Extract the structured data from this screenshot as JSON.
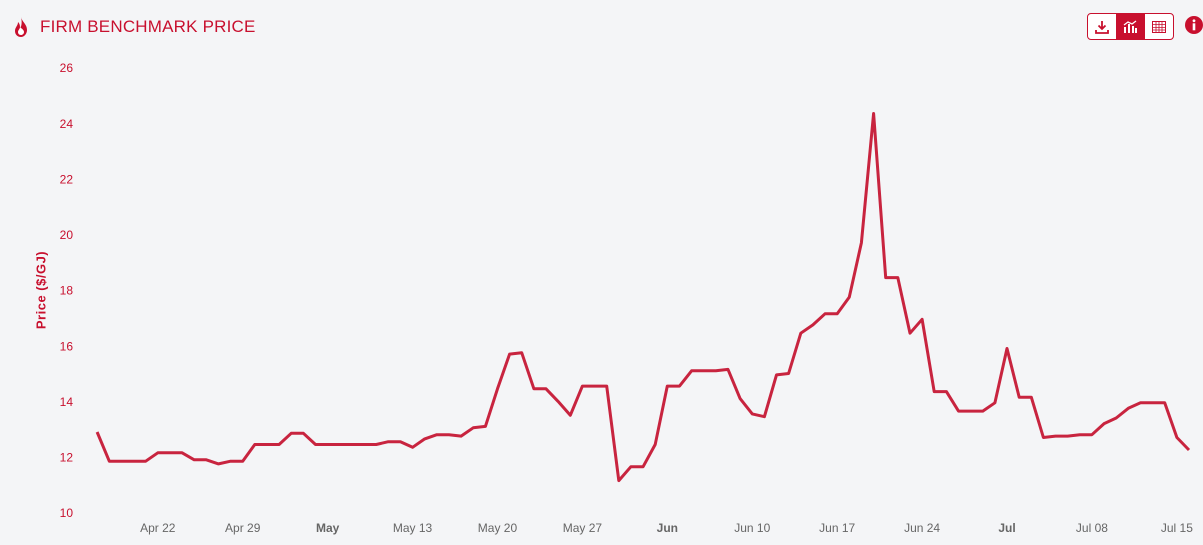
{
  "chart_data": {
    "type": "line",
    "title": "FIRM BENCHMARK PRICE",
    "ylabel": "Price ($/GJ)",
    "color": "#c8243f",
    "x": [
      "Apr 17",
      "Apr 18",
      "Apr 19",
      "Apr 20",
      "Apr 21",
      "Apr 22",
      "Apr 23",
      "Apr 24",
      "Apr 25",
      "Apr 26",
      "Apr 27",
      "Apr 28",
      "Apr 29",
      "Apr 30",
      "May 01",
      "May 02",
      "May 03",
      "May 04",
      "May 05",
      "May 06",
      "May 07",
      "May 08",
      "May 09",
      "May 10",
      "May 11",
      "May 12",
      "May 13",
      "May 14",
      "May 15",
      "May 16",
      "May 17",
      "May 18",
      "May 19",
      "May 20",
      "May 21",
      "May 22",
      "May 23",
      "May 24",
      "May 25",
      "May 26",
      "May 27",
      "May 28",
      "May 29",
      "May 30",
      "May 31",
      "Jun 01",
      "Jun 02",
      "Jun 03",
      "Jun 04",
      "Jun 05",
      "Jun 06",
      "Jun 07",
      "Jun 08",
      "Jun 09",
      "Jun 10",
      "Jun 11",
      "Jun 12",
      "Jun 13",
      "Jun 14",
      "Jun 15",
      "Jun 16",
      "Jun 17",
      "Jun 18",
      "Jun 19",
      "Jun 20",
      "Jun 21",
      "Jun 22",
      "Jun 23",
      "Jun 24",
      "Jun 25",
      "Jun 26",
      "Jun 27",
      "Jun 28",
      "Jun 29",
      "Jun 30",
      "Jul 01",
      "Jul 02",
      "Jul 03",
      "Jul 04",
      "Jul 05",
      "Jul 06",
      "Jul 07",
      "Jul 08",
      "Jul 09",
      "Jul 10",
      "Jul 11",
      "Jul 12",
      "Jul 13",
      "Jul 14",
      "Jul 15",
      "Jul 16"
    ],
    "values": [
      12.95,
      11.9,
      11.9,
      11.9,
      11.9,
      12.2,
      12.2,
      12.2,
      11.95,
      11.95,
      11.8,
      11.9,
      11.9,
      12.5,
      12.5,
      12.5,
      12.9,
      12.9,
      12.5,
      12.5,
      12.5,
      12.5,
      12.5,
      12.5,
      12.6,
      12.6,
      12.4,
      12.7,
      12.85,
      12.85,
      12.8,
      13.1,
      13.15,
      14.5,
      15.75,
      15.8,
      14.5,
      14.5,
      14.05,
      13.55,
      14.6,
      14.6,
      14.6,
      11.2,
      11.7,
      11.7,
      12.5,
      14.6,
      14.6,
      15.15,
      15.15,
      15.15,
      15.2,
      14.15,
      13.6,
      13.5,
      15.0,
      15.05,
      16.5,
      16.8,
      17.2,
      17.2,
      17.8,
      19.75,
      24.4,
      18.5,
      18.5,
      16.5,
      17.0,
      14.4,
      14.4,
      13.7,
      13.7,
      13.7,
      14.0,
      15.95,
      14.2,
      14.2,
      12.75,
      12.8,
      12.8,
      12.85,
      12.85,
      13.25,
      13.45,
      13.8,
      14.0,
      14.0,
      14.0,
      12.75,
      12.3
    ],
    "xlim": [
      "Apr 16",
      "Jul 16"
    ],
    "xticks": [
      "Apr 22",
      "Apr 29",
      {
        "value": "May 06",
        "label": "May"
      },
      "May 13",
      "May 20",
      "May 27",
      {
        "value": "Jun 03",
        "label": "Jun"
      },
      "Jun 10",
      "Jun 17",
      "Jun 24",
      {
        "value": "Jul 01",
        "label": "Jul"
      },
      "Jul 08",
      "Jul 15"
    ],
    "ylim": [
      10,
      26
    ],
    "yticks": [
      10,
      12,
      14,
      16,
      18,
      20,
      22,
      24,
      26
    ],
    "grid": false
  }
}
